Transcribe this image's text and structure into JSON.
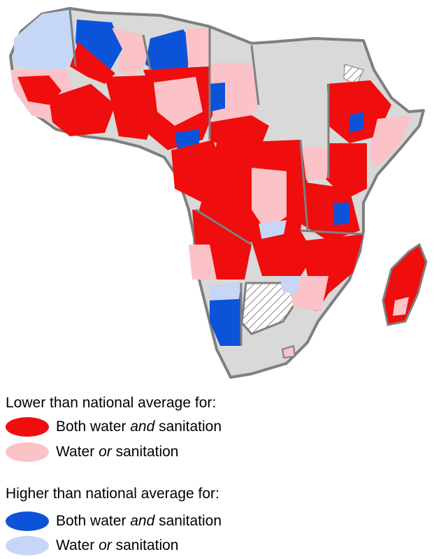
{
  "colors": {
    "lower_both": "#f00d0d",
    "lower_either": "#fbc2c7",
    "higher_both": "#0b53d9",
    "higher_either": "#c6d6f7",
    "no_data": "#d9d9d9",
    "border": "#7f7f7f"
  },
  "legend": {
    "lower_heading": "Lower than national average for:",
    "higher_heading": "Higher than national average for:",
    "both_pre": "Both water ",
    "both_em": "and",
    "both_post": " sanitation",
    "either_pre": "Water ",
    "either_em": "or",
    "either_post": " sanitation"
  },
  "map_icon": "africa-choropleth-map"
}
